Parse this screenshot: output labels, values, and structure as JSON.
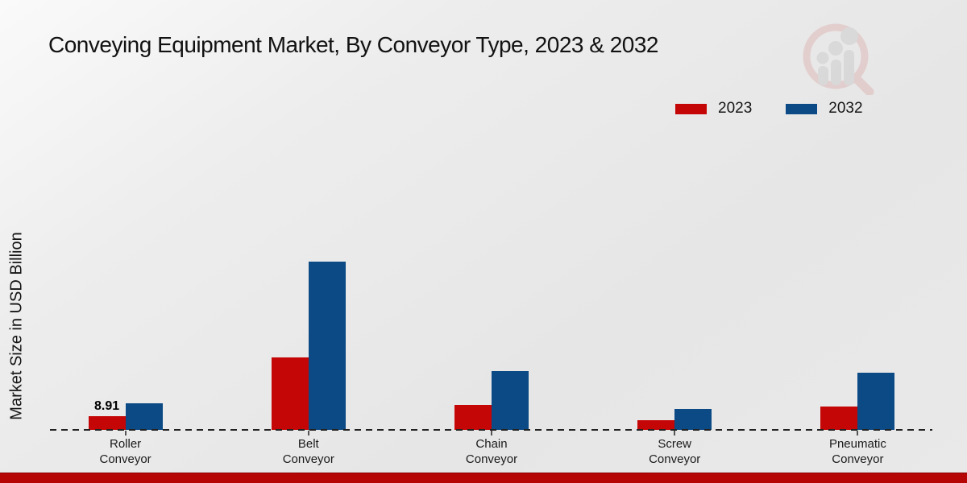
{
  "chart_data": {
    "type": "bar",
    "title": "Conveying Equipment Market, By Conveyor Type, 2023 & 2032",
    "ylabel": "Market Size in USD Billion",
    "unit": "USD Billion",
    "categories": [
      "Roller\nConveyor",
      "Belt\nConveyor",
      "Chain\nConveyor",
      "Screw\nConveyor",
      "Pneumatic\nConveyor"
    ],
    "series": [
      {
        "name": "2023",
        "color": "#c40606",
        "values": [
          8.91,
          47.2,
          16.2,
          6.3,
          15.2
        ]
      },
      {
        "name": "2032",
        "color": "#0b4a85",
        "values": [
          17.3,
          109.5,
          38.3,
          13.6,
          37.2
        ]
      }
    ],
    "bar_labels": [
      {
        "series": 0,
        "category": 0,
        "text": "8.91"
      }
    ],
    "ylim": [
      0,
      120
    ],
    "grid": false,
    "legend_position": "top-right",
    "baseline_style": "dashed"
  },
  "branding": {
    "watermark": "magnifier-bar-chart-logo",
    "footer_bar_color": "#b50505"
  }
}
